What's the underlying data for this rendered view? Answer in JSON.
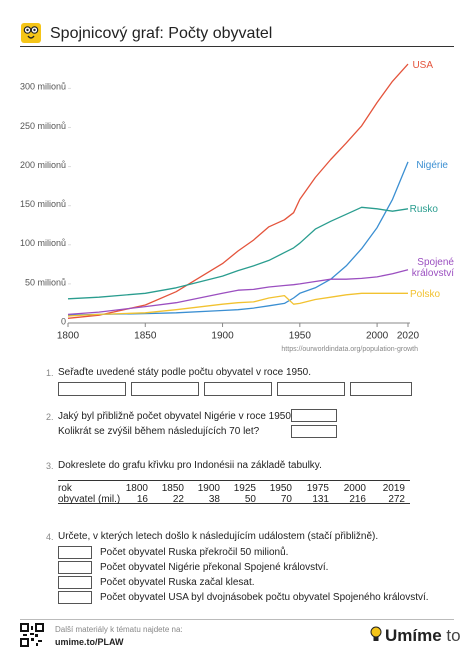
{
  "header": {
    "title": "Spojnicový graf: Počty obyvatel"
  },
  "chart_data": {
    "type": "line",
    "x": [
      1800,
      1820,
      1850,
      1870,
      1900,
      1910,
      1920,
      1930,
      1940,
      1946,
      1950,
      1960,
      1970,
      1980,
      1990,
      2000,
      2010,
      2020
    ],
    "series": [
      {
        "name": "USA",
        "color": "#e4543c",
        "values": [
          6,
          10,
          23,
          40,
          76,
          92,
          106,
          123,
          132,
          141,
          158,
          186,
          209,
          230,
          252,
          282,
          309,
          331
        ]
      },
      {
        "name": "Nigérie",
        "color": "#3b8fd2",
        "values": [
          10,
          11,
          12,
          13,
          16,
          17,
          19,
          22,
          25,
          32,
          38,
          45,
          56,
          73,
          95,
          122,
          158,
          206
        ]
      },
      {
        "name": "Rusko",
        "color": "#2a9d8f",
        "values": [
          31,
          33,
          38,
          45,
          60,
          67,
          73,
          80,
          90,
          96,
          102,
          120,
          130,
          139,
          148,
          146,
          143,
          146
        ]
      },
      {
        "name": "Spojené království",
        "color": "#9b4fc0",
        "values": [
          11,
          14,
          21,
          26,
          38,
          42,
          43,
          46,
          48,
          49,
          50,
          53,
          56,
          56,
          57,
          59,
          63,
          68
        ]
      },
      {
        "name": "Polsko",
        "color": "#f2c230",
        "values": [
          9,
          11,
          13,
          17,
          24,
          26,
          27,
          32,
          35,
          24,
          25,
          30,
          33,
          36,
          38,
          38,
          38,
          38
        ]
      }
    ],
    "xlim": [
      1800,
      2020
    ],
    "xticks": [
      1800,
      1850,
      1900,
      1950,
      2000,
      2020
    ],
    "ylim": [
      0,
      335
    ],
    "yticks": [
      0,
      {
        "value": 50,
        "label": "50 milionů"
      },
      {
        "value": 100,
        "label": "100 milionů"
      },
      {
        "value": 150,
        "label": "150 milionů"
      },
      {
        "value": 200,
        "label": "200 milionů"
      },
      {
        "value": 250,
        "label": "250 milionů"
      },
      {
        "value": 300,
        "label": "300 milionů"
      }
    ],
    "source": "https://ourworldindata.org/population-growth"
  },
  "questions": [
    {
      "number": "1.",
      "text": "Seřaďte uvedené státy podle počtu obyvatel v roce 1950."
    },
    {
      "number": "2.",
      "text": "Jaký byl přibližně počet obyvatel Nigérie v roce 1950?",
      "text2": "Kolikrát se zvýšil během následujících 70 let?"
    },
    {
      "number": "3.",
      "text": "Dokreslete do grafu křivku pro Indonésii na základě tabulky."
    },
    {
      "number": "4.",
      "text": "Určete, v kterých letech došlo k následujícím událostem (stačí přibližně).",
      "items": [
        "Počet obyvatel Ruska překročil 50 milionů.",
        "Počet obyvatel Nigérie překonal Spojené království.",
        "Počet obyvatel Ruska začal klesat.",
        "Počet obyvatel USA byl dvojnásobek počtu obyvatel Spojeného království."
      ]
    }
  ],
  "table": {
    "rows": [
      [
        "rok",
        1800,
        1850,
        1900,
        1925,
        1950,
        1975,
        2000,
        2019
      ],
      [
        "obyvatel (mil.)",
        16,
        22,
        38,
        50,
        70,
        131,
        216,
        272
      ]
    ]
  },
  "footer": {
    "text": "Další materiály k tématu najdete na:",
    "link": "umime.to/PLAW",
    "brand": "Umíme",
    "brand_suffix": "to"
  }
}
